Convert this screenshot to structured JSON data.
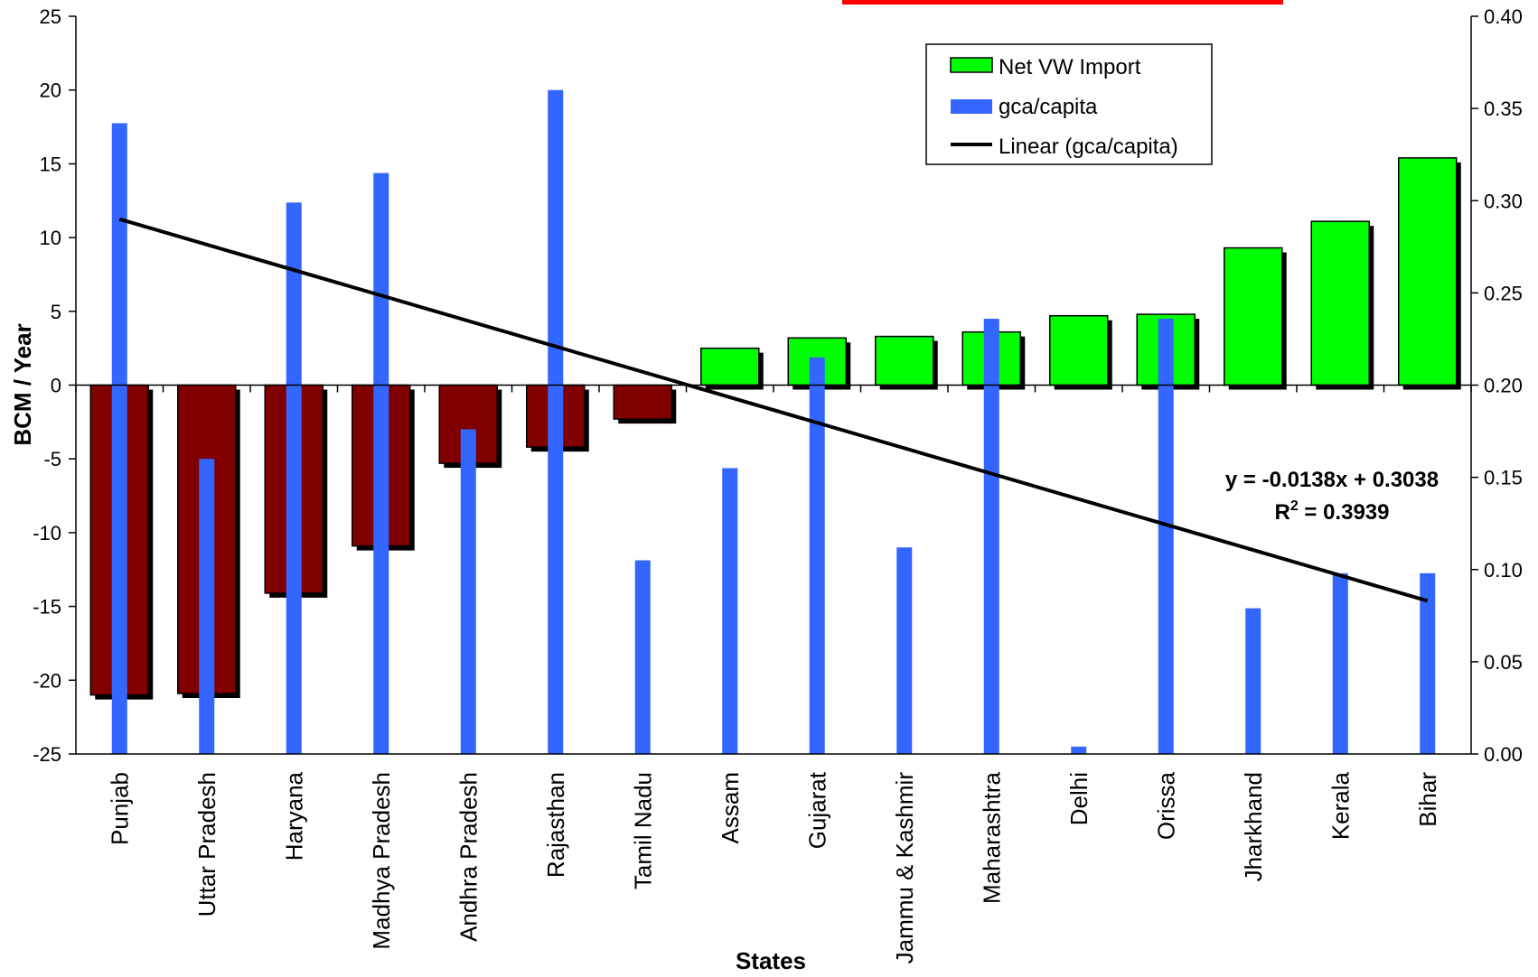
{
  "chart_data": {
    "type": "bar",
    "categories": [
      "Punjab",
      "Uttar Pradesh",
      "Haryana",
      "Madhya Pradesh",
      "Andhra Pradesh",
      "Rajasthan",
      "Tamil Nadu",
      "Assam",
      "Gujarat",
      "Jammu & Kashmir",
      "Maharashtra",
      "Delhi",
      "Orissa",
      "Jharkhand",
      "Kerala",
      "Bihar"
    ],
    "series": [
      {
        "name": "Net VW Import",
        "axis": "left",
        "values": [
          -21.0,
          -20.9,
          -14.1,
          -10.9,
          -5.3,
          -4.2,
          -2.3,
          2.5,
          3.2,
          3.3,
          3.6,
          4.7,
          4.8,
          9.3,
          11.1,
          15.4
        ],
        "colors": {
          "positive": "#00ff00",
          "negative": "#800000"
        }
      },
      {
        "name": "gca/capita",
        "axis": "right",
        "values": [
          0.342,
          0.16,
          0.299,
          0.315,
          0.176,
          0.36,
          0.105,
          0.155,
          0.215,
          0.112,
          0.236,
          0.004,
          0.236,
          0.079,
          0.098,
          0.098
        ],
        "color": "#3366ff"
      }
    ],
    "trendline": {
      "name": "Linear (gca/capita)",
      "slope": -0.0138,
      "intercept": 0.3038,
      "equation": "y = -0.0138x + 0.3038",
      "r2_prefix": "R",
      "r2_sup": "2",
      "r2_value": " = 0.3939",
      "color": "#000000"
    },
    "xlabel": "States",
    "ylabel": "BCM / Year",
    "ylim": [
      -25,
      25
    ],
    "y_ticks": [
      "25",
      "20",
      "15",
      "10",
      "5",
      "0",
      "-5",
      "-10",
      "-15",
      "-20",
      "-25"
    ],
    "y2lim": [
      0,
      0.4
    ],
    "y2_ticks": [
      "0.40",
      "0.35",
      "0.30",
      "0.25",
      "0.20",
      "0.15",
      "0.10",
      "0.05",
      "0.00"
    ],
    "legend": {
      "position": "top-right",
      "entries": [
        "Net VW Import",
        "gca/capita",
        "Linear (gca/capita)"
      ]
    }
  }
}
